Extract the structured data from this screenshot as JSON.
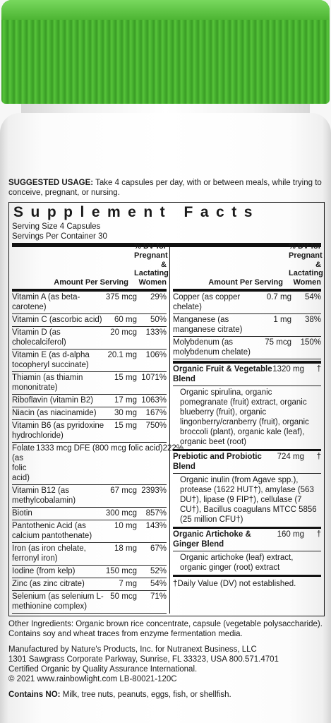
{
  "usage": {
    "label": "SUGGESTED USAGE:",
    "text": "Take 4 capsules per day, with or between meals, while trying to conceive, pregnant, or nursing."
  },
  "facts": {
    "title": "Supplement Facts",
    "serving_size": "Serving Size 4 Capsules",
    "servings_per_container": "Servings Per Container 30",
    "header_amount": "Amount Per Serving",
    "header_dv": "% DV for Pregnant & Lactating Women",
    "left_rows": [
      {
        "name": "Vitamin A (as beta-carotene)",
        "amount": "375 mcg",
        "dv": "29%"
      },
      {
        "name": "Vitamin C (ascorbic acid)",
        "amount": "60 mg",
        "dv": "50%"
      },
      {
        "name": "Vitamin D (as cholecalciferol)",
        "amount": "20 mcg",
        "dv": "133%"
      },
      {
        "name": "Vitamin E (as d-alpha tocopheryl succinate)",
        "amount": "20.1 mg",
        "dv": "106%"
      },
      {
        "name": "Thiamin (as thiamin mononitrate)",
        "amount": "15 mg",
        "dv": "1071%"
      },
      {
        "name": "Riboflavin (vitamin B2)",
        "amount": "17 mg",
        "dv": "1063%"
      },
      {
        "name": "Niacin (as niacinamide)",
        "amount": "30 mg",
        "dv": "167%"
      },
      {
        "name": "Vitamin B6 (as pyridoxine hydrochloride)",
        "amount": "15 mg",
        "dv": "750%"
      },
      {
        "name": "Folate (as folic acid)",
        "amount": "1333 mcg DFE (800 mcg folic acid)",
        "dv": "222%"
      },
      {
        "name": "Vitamin B12 (as methylcobalamin)",
        "amount": "67 mcg",
        "dv": "2393%"
      },
      {
        "name": "Biotin",
        "amount": "300 mcg",
        "dv": "857%"
      },
      {
        "name": "Pantothenic Acid (as calcium pantothenate)",
        "amount": "10 mg",
        "dv": "143%"
      },
      {
        "name": "Iron (as iron chelate, ferronyl iron)",
        "amount": "18 mg",
        "dv": "67%"
      },
      {
        "name": "Iodine (from kelp)",
        "amount": "150 mcg",
        "dv": "52%"
      },
      {
        "name": "Zinc (as zinc citrate)",
        "amount": "7 mg",
        "dv": "54%"
      },
      {
        "name": "Selenium (as selenium L-methionine complex)",
        "amount": "50 mcg",
        "dv": "71%"
      }
    ],
    "right_rows": [
      {
        "name": "Copper (as copper chelate)",
        "amount": "0.7 mg",
        "dv": "54%"
      },
      {
        "name": "Manganese (as manganese citrate)",
        "amount": "1 mg",
        "dv": "38%"
      },
      {
        "name": "Molybdenum (as molybdenum chelate)",
        "amount": "75 mcg",
        "dv": "150%"
      }
    ],
    "blends": [
      {
        "name": "Organic Fruit & Vegetable Blend",
        "amount": "1320 mg",
        "dv": "†",
        "ingredients": "Organic spirulina, organic pomegranate (fruit) extract, organic blueberry (fruit), organic lingonberry/cranberry (fruit), organic broccoli (plant), organic kale (leaf), organic beet (root)"
      },
      {
        "name": "Prebiotic and Probiotic Blend",
        "amount": "724 mg",
        "dv": "†",
        "ingredients": "Organic inulin (from Agave spp.), protease (1622 HUT†), amylase (563 DU†), lipase (9 FIP†), cellulase (7 CU†), Bacillus coagulans MTCC 5856 (25 million CFU†)"
      },
      {
        "name": "Organic Artichoke & Ginger Blend",
        "amount": "160 mg",
        "dv": "†",
        "ingredients": "Organic artichoke (leaf) extract, organic ginger (root) extract"
      }
    ],
    "footnote": "†Daily Value (DV) not established."
  },
  "other_ingredients": "Other Ingredients: Organic brown rice concentrate, capsule (vegetable polysaccharide). Contains soy and wheat traces from enzyme fermentation media.",
  "manufacturer": {
    "line1": "Manufactured by Nature's Products, Inc. for Nutranext Business, LLC",
    "line2": "1301 Sawgrass Corporate Parkway, Sunrise, FL 33323, USA 800.571.4701",
    "line3": "Certified Organic by Quality Assurance International.",
    "line4": "© 2021 www.rainbowlight.com LB-80021-120C"
  },
  "contains": {
    "label": "Contains NO:",
    "text": "Milk, tree nuts, peanuts, eggs, fish, or shellfish."
  }
}
